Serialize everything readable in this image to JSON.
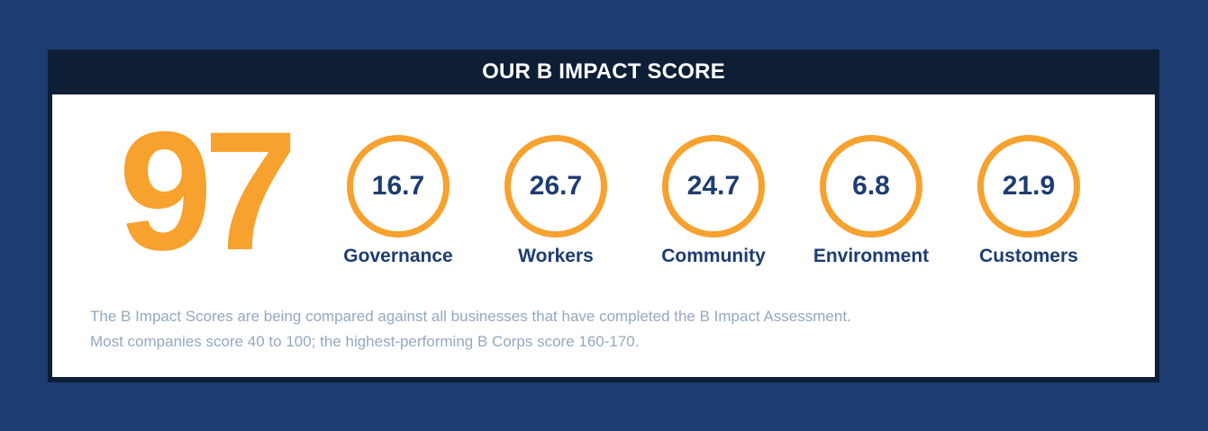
{
  "header": {
    "title": "OUR B IMPACT SCORE"
  },
  "total_score": "97",
  "metrics": [
    {
      "value": "16.7",
      "label": "Governance"
    },
    {
      "value": "26.7",
      "label": "Workers"
    },
    {
      "value": "24.7",
      "label": "Community"
    },
    {
      "value": "6.8",
      "label": "Environment"
    },
    {
      "value": "21.9",
      "label": "Customers"
    }
  ],
  "footnote": {
    "line1": "The B Impact Scores are being compared against all businesses that have completed the B Impact Assessment.",
    "line2": "Most companies score 40 to 100; the highest-performing B Corps score 160-170."
  },
  "colors": {
    "background": "#1d3c72",
    "header_bar": "#0e1e35",
    "accent_orange": "#f7a12e",
    "text_navy": "#1d3c72",
    "footnote_gray": "#93a8bf"
  }
}
